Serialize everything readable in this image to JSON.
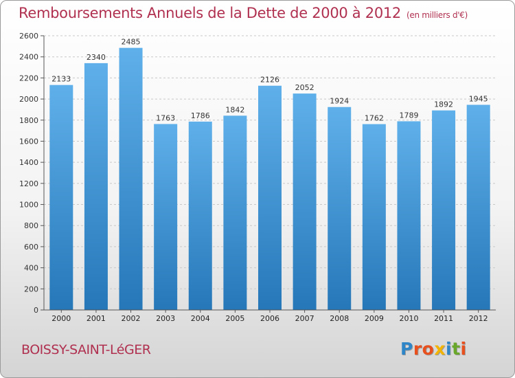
{
  "title": "Remboursements Annuels de la Dette de 2000 à 2012",
  "subtitle": "(en milliers d'€)",
  "commune": "BOISSY-SAINT-LéGER",
  "logo": {
    "text": "Proxiti",
    "colors": [
      "#2e86c8",
      "#e8501e",
      "#e8501e",
      "#f2b400",
      "#2e86c8",
      "#6aa82c",
      "#e8501e"
    ]
  },
  "colors": {
    "bar_top": "#5fb0ea",
    "bar_bottom": "#2577b8",
    "title": "#b03050"
  },
  "chart_data": {
    "type": "bar",
    "categories": [
      "2000",
      "2001",
      "2002",
      "2003",
      "2004",
      "2005",
      "2006",
      "2007",
      "2008",
      "2009",
      "2010",
      "2011",
      "2012"
    ],
    "values": [
      2133,
      2340,
      2485,
      1763,
      1786,
      1842,
      2126,
      2052,
      1924,
      1762,
      1789,
      1892,
      1945
    ],
    "ylim": [
      0,
      2600
    ],
    "yticks": [
      0,
      200,
      400,
      600,
      800,
      1000,
      1200,
      1400,
      1600,
      1800,
      2000,
      2200,
      2400,
      2600
    ],
    "grid": true,
    "data_labels": true
  }
}
